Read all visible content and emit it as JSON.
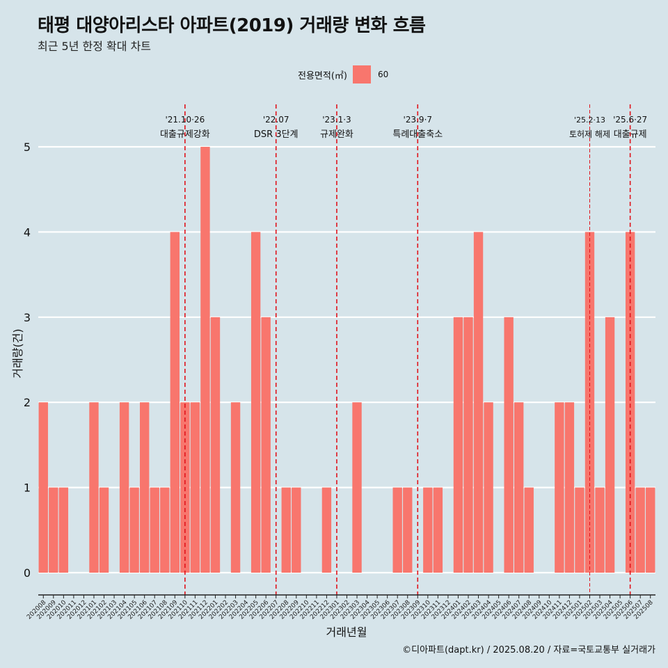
{
  "title": "태평 대양아리스타 아파트(2019) 거래량 변화 흐름",
  "subtitle": "최근 5년 한정 확대 차트",
  "legend": {
    "title": "전용면적(㎡)",
    "item": "60",
    "color": "#f8766d"
  },
  "caption": "©디아파트(dapt.kr) / 2025.08.20 / 자료=국토교통부 실거래가",
  "chart_data": {
    "type": "bar",
    "xlabel": "거래년월",
    "ylabel": "거래량(건)",
    "ylim": [
      0,
      5
    ],
    "yticks": [
      0,
      1,
      2,
      3,
      4,
      5
    ],
    "grid": true,
    "legend_position": "top",
    "series": [
      {
        "name": "60",
        "color": "#f8766d"
      }
    ],
    "bars": [
      {
        "x": "202008",
        "y": 2
      },
      {
        "x": "202009",
        "y": 1
      },
      {
        "x": "202010",
        "y": 1
      },
      {
        "x": "202101",
        "y": 2
      },
      {
        "x": "202102",
        "y": 1
      },
      {
        "x": "202104",
        "y": 2
      },
      {
        "x": "202105",
        "y": 1
      },
      {
        "x": "202106",
        "y": 2
      },
      {
        "x": "202107",
        "y": 1
      },
      {
        "x": "202108",
        "y": 1
      },
      {
        "x": "202109",
        "y": 4
      },
      {
        "x": "202110",
        "y": 2
      },
      {
        "x": "202111",
        "y": 2
      },
      {
        "x": "202112",
        "y": 5
      },
      {
        "x": "202201",
        "y": 3
      },
      {
        "x": "202203",
        "y": 2
      },
      {
        "x": "202205",
        "y": 4
      },
      {
        "x": "202206",
        "y": 3
      },
      {
        "x": "202208",
        "y": 1
      },
      {
        "x": "202209",
        "y": 1
      },
      {
        "x": "202212",
        "y": 1
      },
      {
        "x": "202303",
        "y": 2
      },
      {
        "x": "202307",
        "y": 1
      },
      {
        "x": "202308",
        "y": 1
      },
      {
        "x": "202310",
        "y": 1
      },
      {
        "x": "202311",
        "y": 1
      },
      {
        "x": "202401",
        "y": 3
      },
      {
        "x": "202402",
        "y": 3
      },
      {
        "x": "202403",
        "y": 4
      },
      {
        "x": "202404",
        "y": 2
      },
      {
        "x": "202406",
        "y": 3
      },
      {
        "x": "202407",
        "y": 2
      },
      {
        "x": "202408",
        "y": 1
      },
      {
        "x": "202411",
        "y": 2
      },
      {
        "x": "202412",
        "y": 2
      },
      {
        "x": "202501",
        "y": 1
      },
      {
        "x": "202502",
        "y": 4
      },
      {
        "x": "202503",
        "y": 1
      },
      {
        "x": "202504",
        "y": 3
      },
      {
        "x": "202506",
        "y": 4
      },
      {
        "x": "202507",
        "y": 1
      },
      {
        "x": "202508",
        "y": 1
      }
    ],
    "x_tick_labels": [
      "202008",
      "202009",
      "202010",
      "202011",
      "202012",
      "202101",
      "202102",
      "202103",
      "202104",
      "202105",
      "202106",
      "202107",
      "202108",
      "202109",
      "202110",
      "202111",
      "202112",
      "202201",
      "202202",
      "202203",
      "202204",
      "202205",
      "202206",
      "202207",
      "202208",
      "202209",
      "202210",
      "202211",
      "202212",
      "202301",
      "202302",
      "202303",
      "202304",
      "202305",
      "202306",
      "202307",
      "202308",
      "202309",
      "202310",
      "202311",
      "202312",
      "202401",
      "202402",
      "202403",
      "202404",
      "202405",
      "202406",
      "202407",
      "202408",
      "202409",
      "202410",
      "202411",
      "202412",
      "202501",
      "202502",
      "202503",
      "202504",
      "202505",
      "202506",
      "202507",
      "202508"
    ],
    "annotations": [
      {
        "x": "202110",
        "line1": "'21.10·26",
        "line2": "대출규제강화",
        "style": "dashed"
      },
      {
        "x": "202207",
        "line1": "'22.07",
        "line2": "DSR 3단계",
        "style": "dashed"
      },
      {
        "x": "202301",
        "line1": "'23.1·3",
        "line2": "규제완화",
        "style": "dashed"
      },
      {
        "x": "202309",
        "line1": "'23.9·7",
        "line2": "특례대출축소",
        "style": "dashed"
      },
      {
        "x": "202502",
        "line1": "'25.2·13",
        "line2": "토허제 해제",
        "style": "thin"
      },
      {
        "x": "202506",
        "line1": "'25.6·27",
        "line2": "대출규제",
        "style": "dashed"
      }
    ]
  }
}
